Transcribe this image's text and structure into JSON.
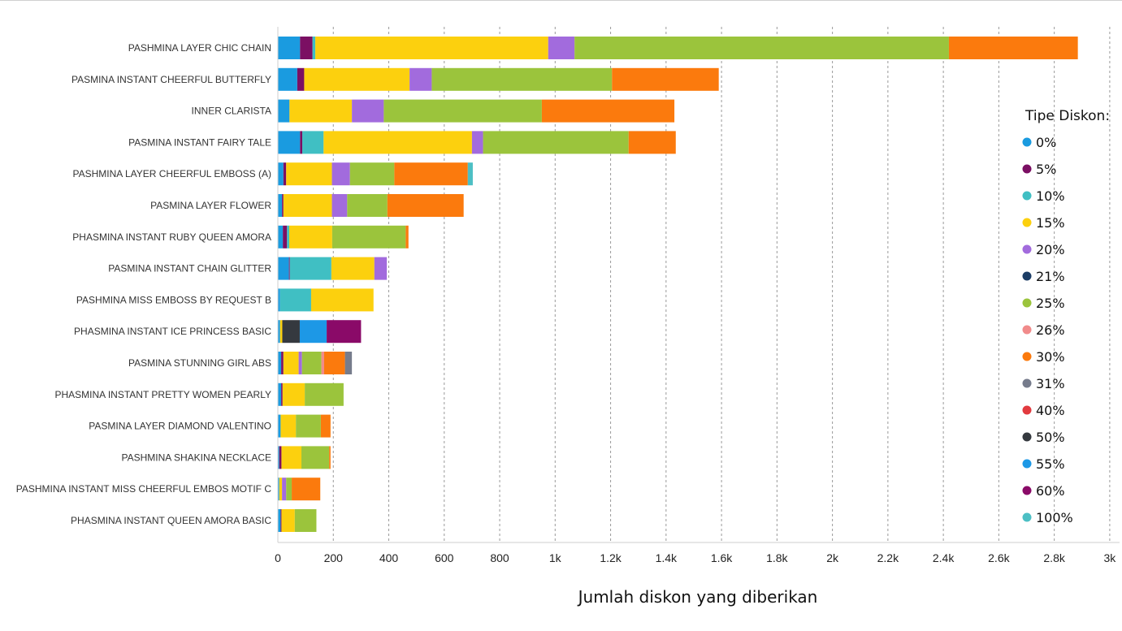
{
  "chart_data": {
    "type": "bar",
    "orientation": "horizontal",
    "stacked": true,
    "title": "",
    "xlabel": "Jumlah diskon yang diberikan",
    "ylabel": "",
    "xlim": [
      0,
      3000
    ],
    "x_ticks": [
      0,
      200,
      400,
      600,
      800,
      1000,
      1200,
      1400,
      1600,
      1800,
      2000,
      2200,
      2400,
      2600,
      2800,
      3000
    ],
    "x_tick_labels": [
      "0",
      "200",
      "400",
      "600",
      "800",
      "1k",
      "1.2k",
      "1.4k",
      "1.6k",
      "1.8k",
      "2k",
      "2.2k",
      "2.4k",
      "2.6k",
      "2.8k",
      "3k"
    ],
    "grid": true,
    "legend": {
      "title": "Tipe Diskon:",
      "placement": "right"
    },
    "categories": [
      "PASHMINA LAYER CHIC CHAIN",
      "PASMINA INSTANT CHEERFUL BUTTERFLY",
      "INNER CLARISTA",
      "PASMINA INSTANT FAIRY TALE",
      "PASHMINA LAYER CHEERFUL EMBOSS (A)",
      "PASMINA LAYER FLOWER",
      "PHASMINA INSTANT RUBY QUEEN AMORA",
      "PASMINA INSTANT CHAIN GLITTER",
      "PASHMINA MISS EMBOSS BY REQUEST B",
      "PHASMINA INSTANT ICE PRINCESS BASIC",
      "PASMINA STUNNING GIRL ABS",
      "PHASMINA INSTANT PRETTY WOMEN PEARLY",
      "PASMINA LAYER DIAMOND VALENTINO",
      "PASHMINA SHAKINA NECKLACE",
      "PASHMINA INSTANT MISS CHEERFUL EMBOS MOTIF C",
      "PHASMINA INSTANT QUEEN AMORA BASIC"
    ],
    "series": [
      {
        "name": "0%",
        "color": "#1a9be0",
        "values": [
          80,
          70,
          42,
          80,
          20,
          15,
          18,
          40,
          8,
          8,
          12,
          12,
          10,
          5,
          5,
          10
        ]
      },
      {
        "name": "5%",
        "color": "#7b0f63",
        "values": [
          45,
          25,
          0,
          8,
          10,
          5,
          15,
          3,
          0,
          0,
          8,
          5,
          0,
          8,
          0,
          3
        ]
      },
      {
        "name": "10%",
        "color": "#40bfc3",
        "values": [
          10,
          0,
          0,
          77,
          0,
          0,
          8,
          150,
          112,
          0,
          0,
          0,
          0,
          0,
          0,
          0
        ]
      },
      {
        "name": "15%",
        "color": "#fcd00e",
        "values": [
          840,
          380,
          225,
          535,
          165,
          175,
          155,
          155,
          225,
          8,
          55,
          80,
          55,
          72,
          10,
          48
        ]
      },
      {
        "name": "20%",
        "color": "#a26bdd",
        "values": [
          95,
          80,
          115,
          40,
          65,
          55,
          0,
          45,
          0,
          0,
          12,
          0,
          0,
          0,
          15,
          0
        ]
      },
      {
        "name": "21%",
        "color": "#1c3d66",
        "values": [
          0,
          0,
          0,
          0,
          0,
          0,
          0,
          0,
          0,
          0,
          0,
          0,
          0,
          0,
          0,
          0
        ]
      },
      {
        "name": "25%",
        "color": "#9bc43c",
        "values": [
          1350,
          650,
          570,
          525,
          160,
          145,
          265,
          0,
          0,
          0,
          70,
          140,
          90,
          100,
          20,
          78
        ]
      },
      {
        "name": "26%",
        "color": "#f18b8b",
        "values": [
          0,
          0,
          0,
          0,
          0,
          0,
          0,
          0,
          0,
          0,
          10,
          0,
          0,
          0,
          0,
          0
        ]
      },
      {
        "name": "30%",
        "color": "#fb7a0d",
        "values": [
          465,
          385,
          478,
          170,
          265,
          275,
          10,
          0,
          0,
          0,
          75,
          0,
          35,
          5,
          103,
          0
        ]
      },
      {
        "name": "31%",
        "color": "#767c8c",
        "values": [
          0,
          0,
          0,
          0,
          0,
          0,
          0,
          0,
          0,
          0,
          25,
          0,
          0,
          0,
          0,
          0
        ]
      },
      {
        "name": "40%",
        "color": "#e23a3f",
        "values": [
          0,
          0,
          0,
          0,
          0,
          0,
          0,
          0,
          0,
          0,
          0,
          0,
          0,
          0,
          0,
          0
        ]
      },
      {
        "name": "50%",
        "color": "#35393f",
        "values": [
          0,
          0,
          0,
          0,
          0,
          0,
          0,
          0,
          0,
          63,
          0,
          0,
          0,
          0,
          0,
          0
        ]
      },
      {
        "name": "55%",
        "color": "#1d98e6",
        "values": [
          0,
          0,
          0,
          0,
          0,
          0,
          0,
          0,
          0,
          97,
          0,
          0,
          0,
          0,
          0,
          0
        ]
      },
      {
        "name": "60%",
        "color": "#8a0a68",
        "values": [
          0,
          0,
          0,
          0,
          0,
          0,
          0,
          0,
          0,
          124,
          0,
          0,
          0,
          0,
          0,
          0
        ]
      },
      {
        "name": "100%",
        "color": "#4cbfc4",
        "values": [
          0,
          0,
          0,
          0,
          18,
          0,
          0,
          0,
          0,
          0,
          0,
          0,
          0,
          0,
          0,
          0
        ]
      }
    ]
  }
}
